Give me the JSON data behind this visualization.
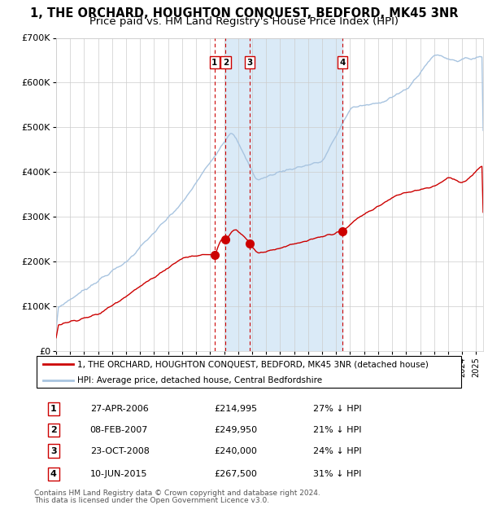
{
  "title": "1, THE ORCHARD, HOUGHTON CONQUEST, BEDFORD, MK45 3NR",
  "subtitle": "Price paid vs. HM Land Registry's House Price Index (HPI)",
  "ylim": [
    0,
    700000
  ],
  "yticks": [
    0,
    100000,
    200000,
    300000,
    400000,
    500000,
    600000,
    700000
  ],
  "ytick_labels": [
    "£0",
    "£100K",
    "£200K",
    "£300K",
    "£400K",
    "£500K",
    "£600K",
    "£700K"
  ],
  "xlim_start": 1995.0,
  "xlim_end": 2025.5,
  "hpi_color": "#a8c4e0",
  "price_color": "#cc0000",
  "vline_color": "#cc0000",
  "shade_color": "#daeaf7",
  "grid_color": "#cccccc",
  "bg_color": "#ffffff",
  "sales": [
    {
      "label": "1",
      "date_num": 2006.32,
      "price": 214995,
      "date_str": "27-APR-2006",
      "hpi_pct": "27% ↓ HPI"
    },
    {
      "label": "2",
      "date_num": 2007.1,
      "price": 249950,
      "date_str": "08-FEB-2007",
      "hpi_pct": "21% ↓ HPI"
    },
    {
      "label": "3",
      "date_num": 2008.82,
      "price": 240000,
      "date_str": "23-OCT-2008",
      "hpi_pct": "24% ↓ HPI"
    },
    {
      "label": "4",
      "date_num": 2015.44,
      "price": 267500,
      "date_str": "10-JUN-2015",
      "hpi_pct": "31% ↓ HPI"
    }
  ],
  "shade_start": 2007.1,
  "shade_end": 2015.44,
  "legend_price_label": "1, THE ORCHARD, HOUGHTON CONQUEST, BEDFORD, MK45 3NR (detached house)",
  "legend_hpi_label": "HPI: Average price, detached house, Central Bedfordshire",
  "footer_line1": "Contains HM Land Registry data © Crown copyright and database right 2024.",
  "footer_line2": "This data is licensed under the Open Government Licence v3.0.",
  "table_rows": [
    {
      "label": "1",
      "date": "27-APR-2006",
      "price": "£214,995",
      "hpi": "27% ↓ HPI"
    },
    {
      "label": "2",
      "date": "08-FEB-2007",
      "price": "£249,950",
      "hpi": "21% ↓ HPI"
    },
    {
      "label": "3",
      "date": "23-OCT-2008",
      "price": "£240,000",
      "hpi": "24% ↓ HPI"
    },
    {
      "label": "4",
      "date": "10-JUN-2015",
      "price": "£267,500",
      "hpi": "31% ↓ HPI"
    }
  ]
}
